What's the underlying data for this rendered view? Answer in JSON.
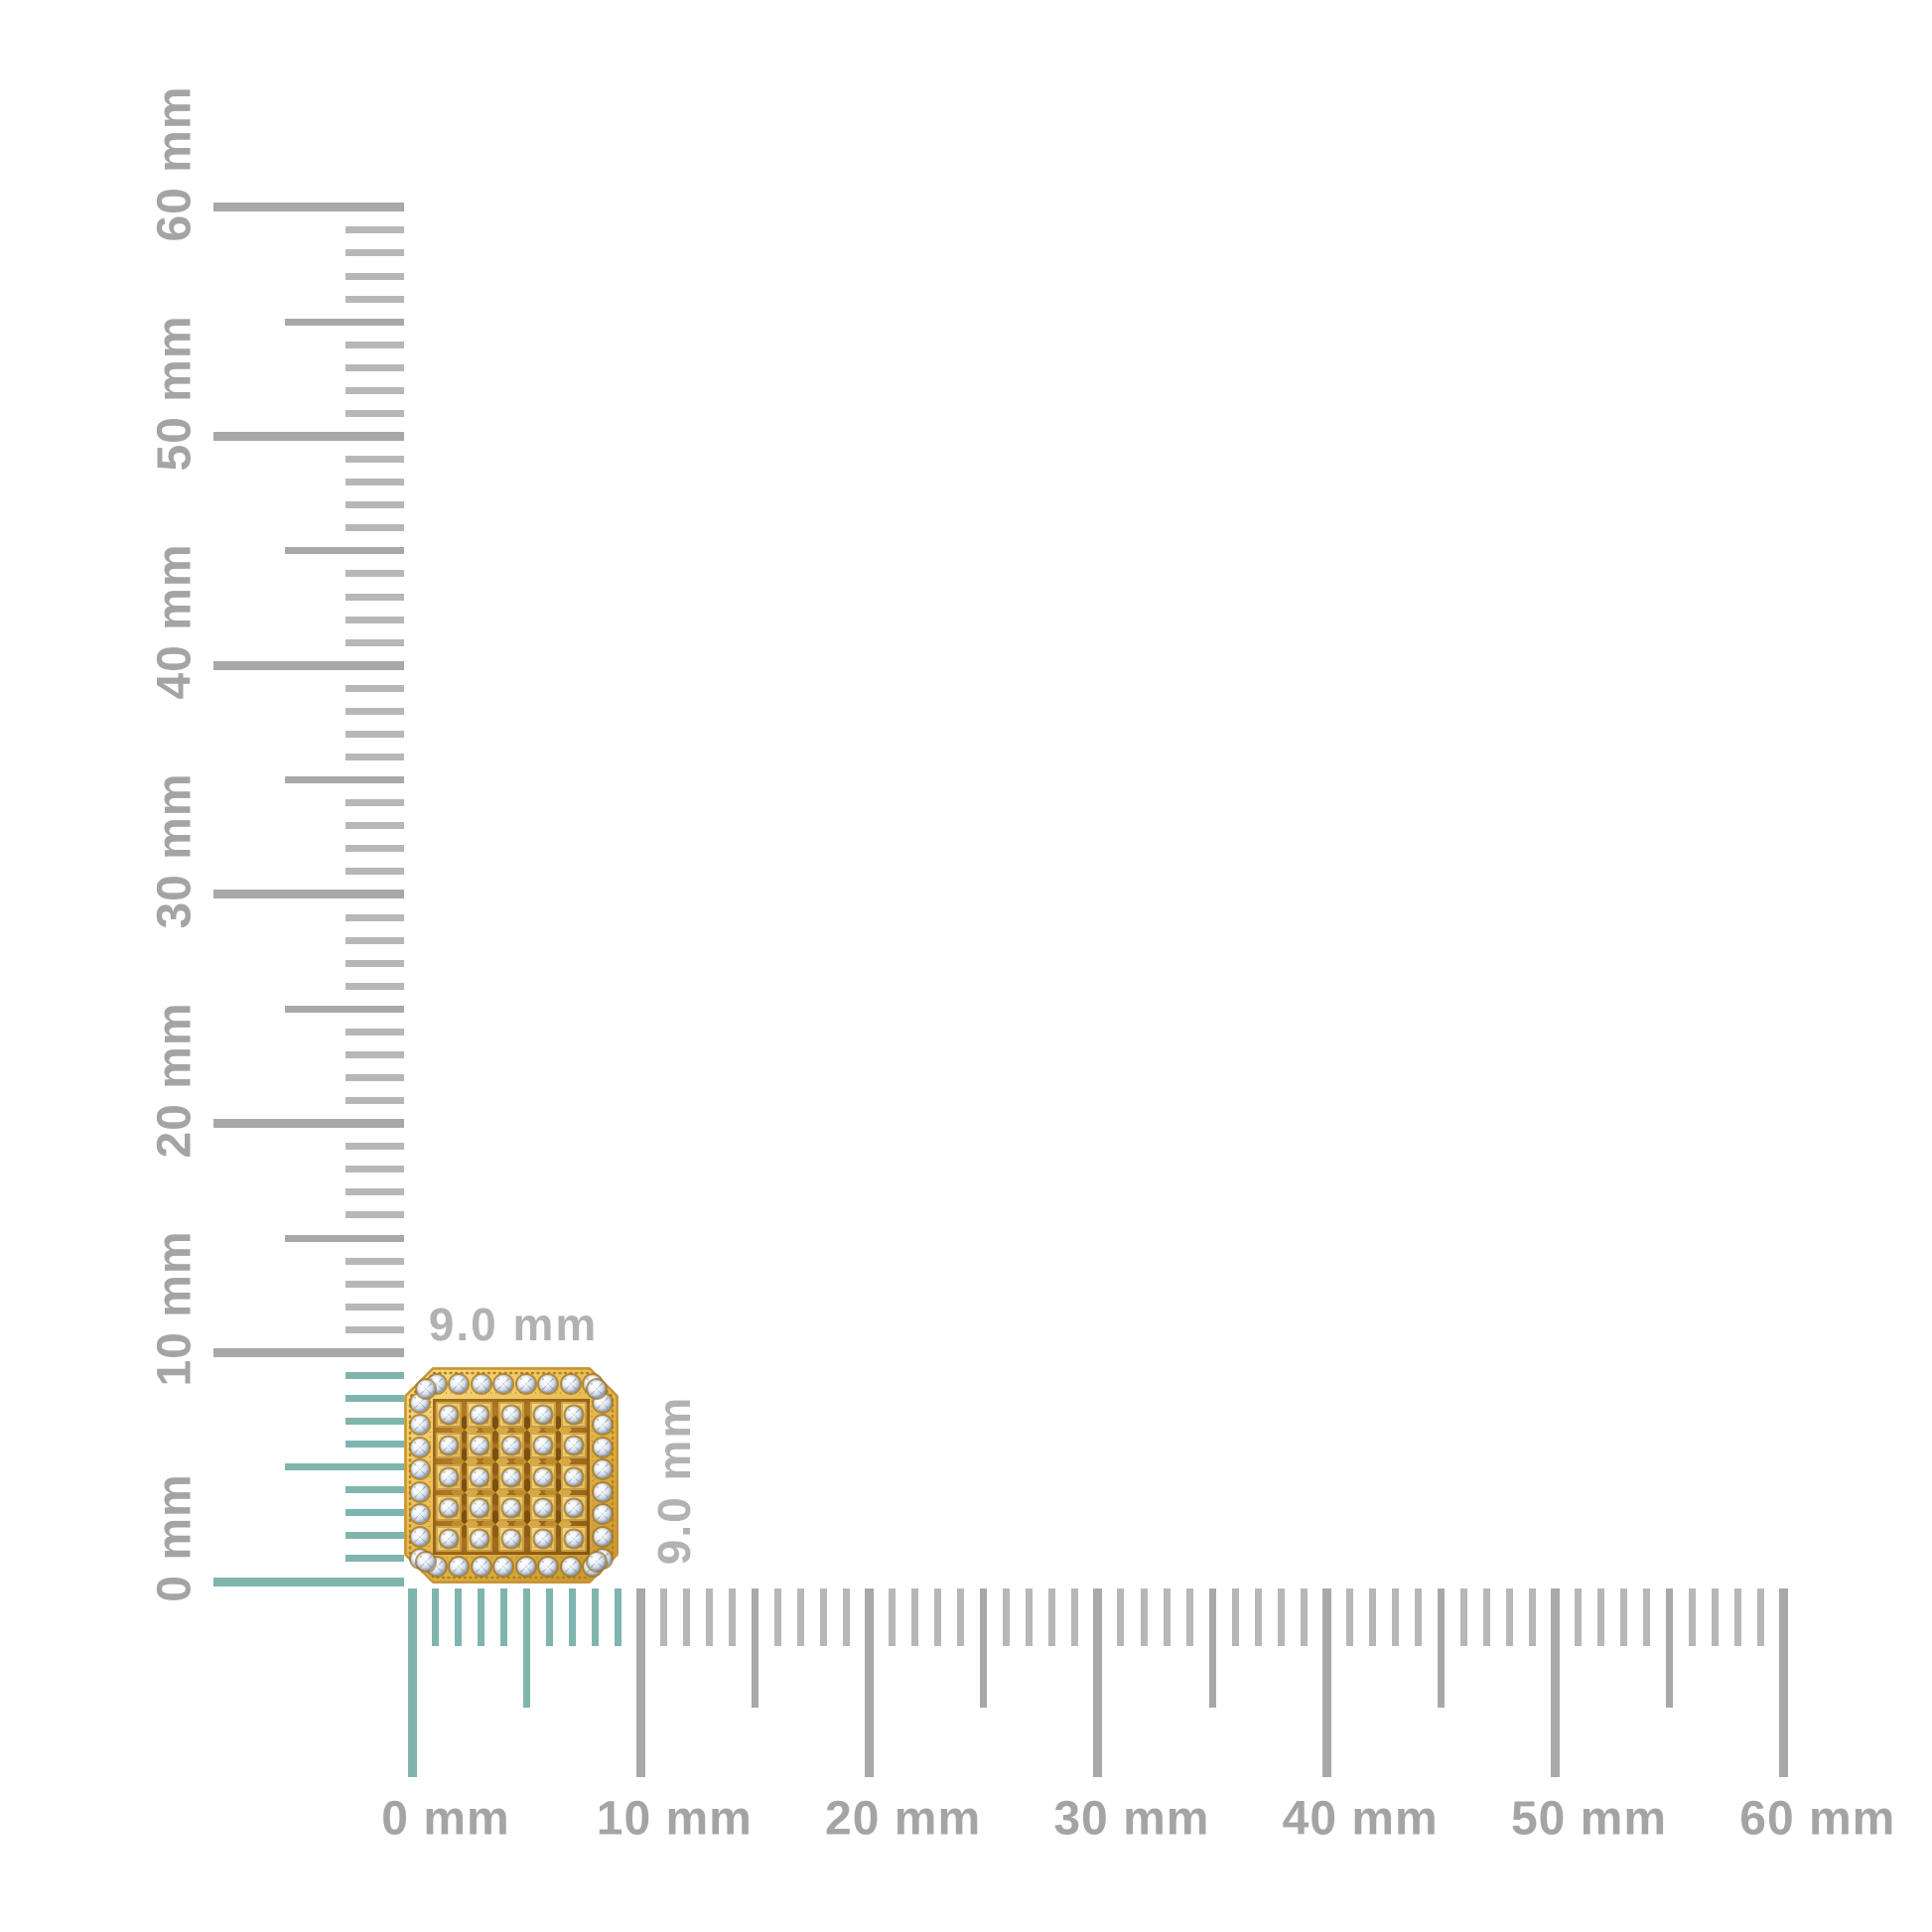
{
  "page": {
    "background_color": "#ffffff"
  },
  "rulers": {
    "unit": "mm",
    "min_mm": 0,
    "max_mm": 60,
    "minor_step_mm": 1,
    "medium_step_mm": 5,
    "major_step_mm": 10,
    "highlight_span_mm": 9,
    "colors": {
      "tick_minor_gray": "#b7b7b7",
      "tick_major_gray": "#a8a8a8",
      "tick_highlight_teal": "#7fb5ae",
      "label_gray": "#a4a4a4"
    },
    "vertical_labels": [
      "0 mm",
      "10 mm",
      "20 mm",
      "30 mm",
      "40 mm",
      "50 mm",
      "60 mm"
    ],
    "horizontal_labels": [
      "0 mm",
      "10 mm",
      "20 mm",
      "30 mm",
      "40 mm",
      "50 mm",
      "60 mm"
    ]
  },
  "dimension_labels": {
    "width": "9.0 mm",
    "height": "9.0 mm",
    "color": "#b2b2b2"
  },
  "item": {
    "description": "yellow-gold square stud with cut corners, pave diamond grid and diamond halo border",
    "halo": {
      "diamonds_per_side": 8,
      "corner_diamonds": 4,
      "total_diamonds": 36
    },
    "pave_grid": {
      "rows": 5,
      "cols": 5,
      "diamond_count": 25
    },
    "colors": {
      "gold_light": "#f8dd88",
      "gold_mid": "#e3b54b",
      "gold_dark": "#a9711d",
      "gold_shadow": "#8e5d13",
      "diamond_white": "#ffffff",
      "diamond_gray": "#95a3b6"
    }
  }
}
